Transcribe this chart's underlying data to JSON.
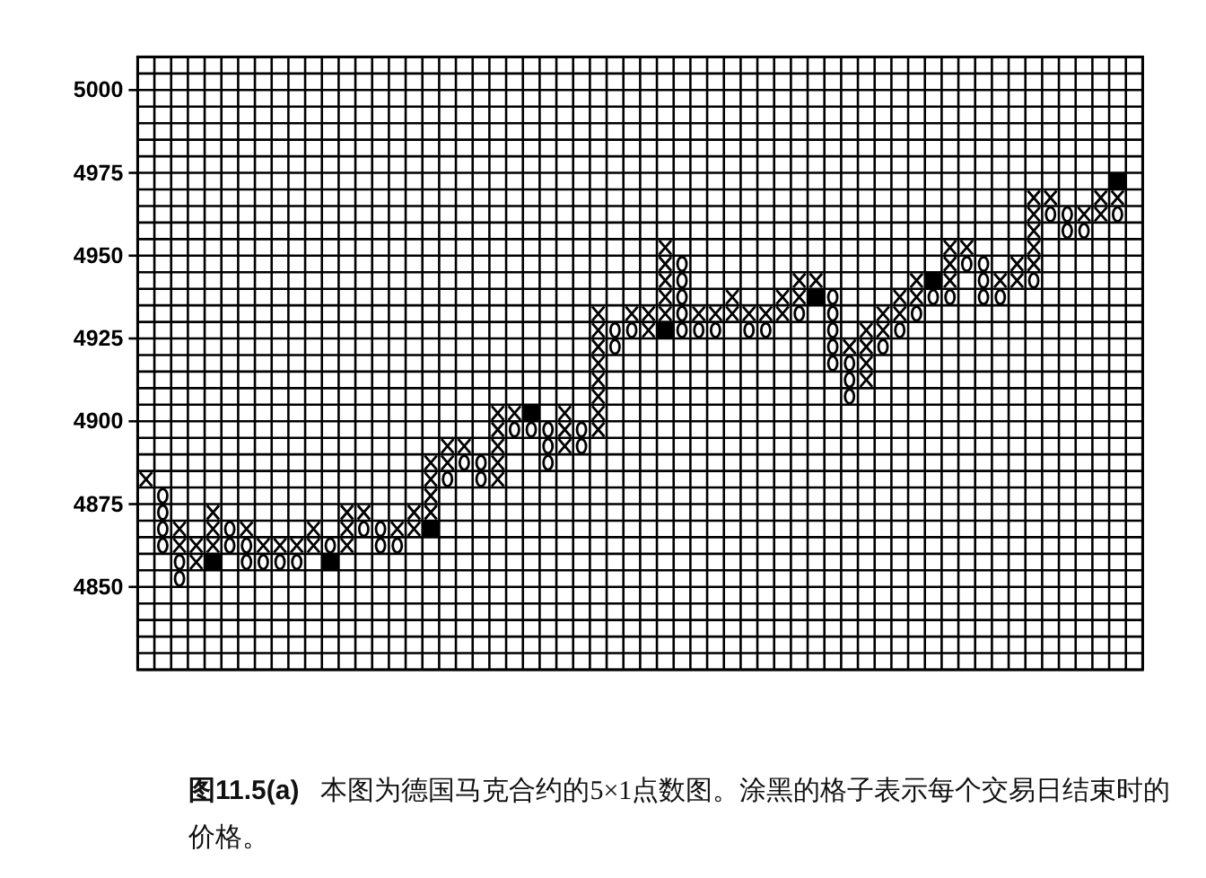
{
  "chart_data": {
    "type": "scatter",
    "annotations": [
      "图11.5(a)",
      "本图为德国马克合约的5×1点数图。涂黑的格子表示每个交易日结束时的价格。"
    ],
    "categories": [
      null,
      null,
      null,
      null,
      null,
      null,
      null,
      null,
      null,
      null,
      null,
      null,
      null,
      null,
      null,
      null,
      null,
      null,
      null,
      null,
      null,
      null,
      null,
      null,
      null,
      null,
      null,
      null,
      null,
      null,
      null,
      null,
      null,
      null,
      null,
      null,
      null,
      null,
      null,
      null,
      null,
      null,
      null,
      null,
      null,
      null,
      null,
      null,
      null,
      null,
      null,
      null,
      null,
      null,
      null,
      null,
      null,
      null,
      null,
      null
    ],
    "ylim": [
      4825,
      5010
    ],
    "tick_labels": "y",
    "grid": true,
    "yticks": [
      {
        "value": 4825,
        "label": null
      },
      {
        "value": 4830,
        "label": null
      },
      {
        "value": 4835,
        "label": null
      },
      {
        "value": 4840,
        "label": null
      },
      {
        "value": 4845,
        "label": null
      },
      4850,
      {
        "value": 4855,
        "label": null
      },
      {
        "value": 4860,
        "label": null
      },
      {
        "value": 4865,
        "label": null
      },
      {
        "value": 4870,
        "label": null
      },
      4875,
      {
        "value": 4880,
        "label": null
      },
      {
        "value": 4885,
        "label": null
      },
      {
        "value": 4890,
        "label": null
      },
      {
        "value": 4895,
        "label": null
      },
      4900,
      {
        "value": 4905,
        "label": null
      },
      {
        "value": 4910,
        "label": null
      },
      {
        "value": 4915,
        "label": null
      },
      {
        "value": 4920,
        "label": null
      },
      4925,
      {
        "value": 4930,
        "label": null
      },
      {
        "value": 4935,
        "label": null
      },
      {
        "value": 4940,
        "label": null
      },
      {
        "value": 4945,
        "label": null
      },
      4950,
      {
        "value": 4955,
        "label": null
      },
      {
        "value": 4960,
        "label": null
      },
      {
        "value": 4965,
        "label": null
      },
      {
        "value": 4970,
        "label": null
      },
      4975,
      {
        "value": 4980,
        "label": null
      },
      {
        "value": 4985,
        "label": null
      },
      {
        "value": 4990,
        "label": null
      },
      {
        "value": 4995,
        "label": null
      },
      5000,
      {
        "value": 5005,
        "label": null
      },
      {
        "value": 5010,
        "label": null
      }
    ],
    "series": [
      {
        "marker": "cross",
        "color": "#000000",
        "values": [
          4882.5,
          null,
          4867.5,
          4862.5,
          4872.5,
          null,
          4867.5,
          4862.5,
          4862.5,
          4862.5,
          4867.5,
          null,
          4872.5,
          4872.5,
          null,
          4867.5,
          4872.5,
          4887.5,
          4892.5,
          4892.5,
          null,
          4902.5,
          4902.5,
          null,
          null,
          4902.5,
          null,
          4932.5,
          null,
          4932.5,
          4932.5,
          4952.5,
          null,
          4932.5,
          4932.5,
          4937.5,
          4932.5,
          4932.5,
          4937.5,
          4942.5,
          4942.5,
          null,
          4922.5,
          4927.5,
          4932.5,
          4937.5,
          4942.5,
          null,
          4952.5,
          4952.5,
          null,
          4942.5,
          4947.5,
          4967.5,
          4967.5,
          null,
          4962.5,
          4967.5,
          4967.5,
          null
        ]
      },
      {
        "marker": "cross",
        "color": "#000000",
        "values": [
          null,
          null,
          4862.5,
          4857.5,
          4867.5,
          null,
          null,
          null,
          null,
          null,
          4862.5,
          null,
          4867.5,
          null,
          null,
          null,
          4867.5,
          4882.5,
          4887.5,
          null,
          null,
          4897.5,
          null,
          null,
          null,
          4897.5,
          null,
          4927.5,
          null,
          null,
          4927.5,
          4947.5,
          null,
          null,
          null,
          4932.5,
          null,
          null,
          4932.5,
          4937.5,
          null,
          null,
          null,
          4922.5,
          4927.5,
          4932.5,
          4937.5,
          null,
          4947.5,
          null,
          null,
          null,
          4942.5,
          4962.5,
          null,
          null,
          null,
          4962.5,
          null,
          null
        ]
      },
      {
        "marker": "cross",
        "color": "#000000",
        "values": [
          null,
          null,
          null,
          null,
          4862.5,
          null,
          null,
          null,
          null,
          null,
          null,
          null,
          4862.5,
          null,
          null,
          null,
          null,
          4877.5,
          null,
          null,
          null,
          4892.5,
          null,
          null,
          null,
          4892.5,
          null,
          4922.5,
          null,
          null,
          null,
          4942.5,
          null,
          null,
          null,
          null,
          null,
          null,
          null,
          null,
          null,
          null,
          null,
          4917.5,
          null,
          null,
          null,
          null,
          4942.5,
          null,
          null,
          null,
          null,
          4957.5,
          null,
          null,
          null,
          null,
          null,
          null
        ]
      },
      {
        "marker": "cross",
        "color": "#000000",
        "values": [
          null,
          null,
          null,
          null,
          null,
          null,
          null,
          null,
          null,
          null,
          null,
          null,
          null,
          null,
          null,
          null,
          null,
          4872.5,
          null,
          null,
          null,
          4887.5,
          null,
          null,
          null,
          null,
          null,
          4917.5,
          null,
          null,
          null,
          4937.5,
          null,
          null,
          null,
          null,
          null,
          null,
          null,
          null,
          null,
          null,
          null,
          4912.5,
          null,
          null,
          null,
          null,
          null,
          null,
          null,
          null,
          null,
          4952.5,
          null,
          null,
          null,
          null,
          null,
          null
        ]
      },
      {
        "marker": "cross",
        "color": "#000000",
        "values": [
          null,
          null,
          null,
          null,
          null,
          null,
          null,
          null,
          null,
          null,
          null,
          null,
          null,
          null,
          null,
          null,
          null,
          null,
          null,
          null,
          null,
          4882.5,
          null,
          null,
          null,
          null,
          null,
          4912.5,
          null,
          null,
          null,
          4932.5,
          null,
          null,
          null,
          null,
          null,
          null,
          null,
          null,
          null,
          null,
          null,
          null,
          null,
          null,
          null,
          null,
          null,
          null,
          null,
          null,
          null,
          4947.5,
          null,
          null,
          null,
          null,
          null,
          null
        ]
      },
      {
        "marker": "cross",
        "color": "#000000",
        "values": [
          null,
          null,
          null,
          null,
          null,
          null,
          null,
          null,
          null,
          null,
          null,
          null,
          null,
          null,
          null,
          null,
          null,
          null,
          null,
          null,
          null,
          null,
          null,
          null,
          null,
          null,
          null,
          4907.5,
          null,
          null,
          null,
          null,
          null,
          null,
          null,
          null,
          null,
          null,
          null,
          null,
          null,
          null,
          null,
          null,
          null,
          null,
          null,
          null,
          null,
          null,
          null,
          null,
          null,
          null,
          null,
          null,
          null,
          null,
          null,
          null
        ]
      },
      {
        "marker": "cross",
        "color": "#000000",
        "values": [
          null,
          null,
          null,
          null,
          null,
          null,
          null,
          null,
          null,
          null,
          null,
          null,
          null,
          null,
          null,
          null,
          null,
          null,
          null,
          null,
          null,
          null,
          null,
          null,
          null,
          null,
          null,
          4902.5,
          null,
          null,
          null,
          null,
          null,
          null,
          null,
          null,
          null,
          null,
          null,
          null,
          null,
          null,
          null,
          null,
          null,
          null,
          null,
          null,
          null,
          null,
          null,
          null,
          null,
          null,
          null,
          null,
          null,
          null,
          null,
          null
        ]
      },
      {
        "marker": "cross",
        "color": "#000000",
        "values": [
          null,
          null,
          null,
          null,
          null,
          null,
          null,
          null,
          null,
          null,
          null,
          null,
          null,
          null,
          null,
          null,
          null,
          null,
          null,
          null,
          null,
          null,
          null,
          null,
          null,
          null,
          null,
          4897.5,
          null,
          null,
          null,
          null,
          null,
          null,
          null,
          null,
          null,
          null,
          null,
          null,
          null,
          null,
          null,
          null,
          null,
          null,
          null,
          null,
          null,
          null,
          null,
          null,
          null,
          null,
          null,
          null,
          null,
          null,
          null,
          null
        ]
      },
      {
        "marker": "circle",
        "color": "#000000",
        "values": [
          null,
          4877.5,
          4857.5,
          null,
          null,
          4867.5,
          4862.5,
          4857.5,
          4857.5,
          4857.5,
          null,
          4862.5,
          null,
          4867.5,
          4867.5,
          4862.5,
          null,
          null,
          4882.5,
          4887.5,
          4887.5,
          null,
          4897.5,
          4897.5,
          4897.5,
          null,
          4897.5,
          null,
          4927.5,
          4927.5,
          null,
          null,
          4947.5,
          4927.5,
          4927.5,
          null,
          4927.5,
          4927.5,
          null,
          4932.5,
          null,
          4937.5,
          4917.5,
          null,
          4922.5,
          4927.5,
          4932.5,
          4937.5,
          4937.5,
          4947.5,
          4947.5,
          4937.5,
          null,
          4942.5,
          4962.5,
          4962.5,
          4957.5,
          null,
          4962.5,
          null
        ]
      },
      {
        "marker": "circle",
        "color": "#000000",
        "values": [
          null,
          4872.5,
          4852.5,
          null,
          null,
          4862.5,
          4857.5,
          null,
          null,
          null,
          null,
          null,
          null,
          null,
          4862.5,
          null,
          null,
          null,
          null,
          null,
          4882.5,
          null,
          null,
          null,
          4892.5,
          null,
          4892.5,
          null,
          4922.5,
          null,
          null,
          null,
          4942.5,
          null,
          null,
          null,
          null,
          null,
          null,
          null,
          null,
          4932.5,
          4912.5,
          null,
          null,
          null,
          null,
          null,
          null,
          null,
          4942.5,
          null,
          null,
          null,
          null,
          4957.5,
          null,
          null,
          null,
          null
        ]
      },
      {
        "marker": "circle",
        "color": "#000000",
        "values": [
          null,
          4867.5,
          null,
          null,
          null,
          null,
          null,
          null,
          null,
          null,
          null,
          null,
          null,
          null,
          null,
          null,
          null,
          null,
          null,
          null,
          null,
          null,
          null,
          null,
          4887.5,
          null,
          null,
          null,
          null,
          null,
          null,
          null,
          4937.5,
          null,
          null,
          null,
          null,
          null,
          null,
          null,
          null,
          4927.5,
          4907.5,
          null,
          null,
          null,
          null,
          null,
          null,
          null,
          4937.5,
          null,
          null,
          null,
          null,
          null,
          null,
          null,
          null,
          null
        ]
      },
      {
        "marker": "circle",
        "color": "#000000",
        "values": [
          null,
          4862.5,
          null,
          null,
          null,
          null,
          null,
          null,
          null,
          null,
          null,
          null,
          null,
          null,
          null,
          null,
          null,
          null,
          null,
          null,
          null,
          null,
          null,
          null,
          null,
          null,
          null,
          null,
          null,
          null,
          null,
          null,
          4932.5,
          null,
          null,
          null,
          null,
          null,
          null,
          null,
          null,
          4922.5,
          null,
          null,
          null,
          null,
          null,
          null,
          null,
          null,
          null,
          null,
          null,
          null,
          null,
          null,
          null,
          null,
          null,
          null
        ]
      },
      {
        "marker": "circle",
        "color": "#000000",
        "values": [
          null,
          null,
          null,
          null,
          null,
          null,
          null,
          null,
          null,
          null,
          null,
          null,
          null,
          null,
          null,
          null,
          null,
          null,
          null,
          null,
          null,
          null,
          null,
          null,
          null,
          null,
          null,
          null,
          null,
          null,
          null,
          null,
          4927.5,
          null,
          null,
          null,
          null,
          null,
          null,
          null,
          null,
          4917.5,
          null,
          null,
          null,
          null,
          null,
          null,
          null,
          null,
          null,
          null,
          null,
          null,
          null,
          null,
          null,
          null,
          null,
          null
        ]
      },
      {
        "marker": "square",
        "color": "#000000",
        "values": [
          null,
          null,
          null,
          null,
          4857.5,
          null,
          null,
          null,
          null,
          null,
          null,
          4857.5,
          null,
          null,
          null,
          null,
          null,
          4867.5,
          null,
          null,
          null,
          null,
          null,
          4902.5,
          null,
          null,
          null,
          null,
          null,
          null,
          null,
          4927.5,
          null,
          null,
          null,
          null,
          null,
          null,
          null,
          null,
          4937.5,
          null,
          null,
          null,
          null,
          null,
          null,
          4942.5,
          null,
          null,
          null,
          null,
          null,
          null,
          null,
          null,
          null,
          null,
          4972.5,
          null
        ]
      }
    ]
  }
}
